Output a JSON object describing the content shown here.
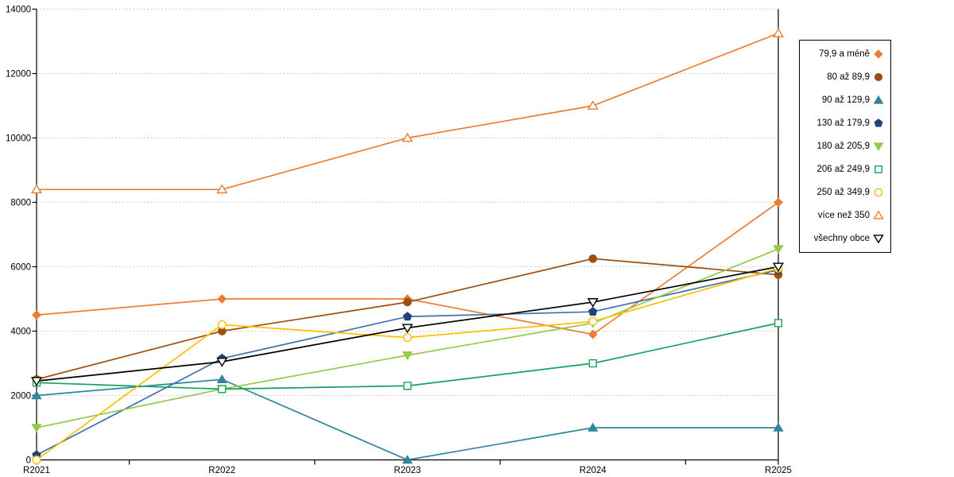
{
  "chart_data": {
    "type": "line",
    "title": "",
    "xlabel": "",
    "ylabel": "",
    "categories": [
      "R2021",
      "R2022",
      "R2023",
      "R2024",
      "R2025"
    ],
    "y_axis": {
      "min": 0,
      "max": 14000,
      "tick_interval": 2000,
      "ticks": [
        0,
        2000,
        4000,
        6000,
        8000,
        10000,
        12000,
        14000
      ],
      "tick_labels": [
        "0",
        "2000",
        "4000",
        "6000",
        "8000",
        "10000",
        "12000",
        "14000"
      ]
    },
    "grid": "horizontal-dotted",
    "grid_color": "#c2c2c2",
    "axis_color": "#000000",
    "legend_position": "right",
    "series": [
      {
        "name": "79,9 a méně",
        "marker": "diamond",
        "marker_fill": "filled",
        "color": "#ED7D31",
        "values": [
          4500,
          5000,
          5000,
          3900,
          8000
        ]
      },
      {
        "name": "80 až 89,9",
        "marker": "circle",
        "marker_fill": "filled",
        "color": "#9E4E10",
        "values": [
          2500,
          4000,
          4900,
          6250,
          5750
        ]
      },
      {
        "name": "90 až 129,9",
        "marker": "triangle-up",
        "marker_fill": "filled",
        "color": "#31859C",
        "values": [
          2000,
          2500,
          0,
          1000,
          1000
        ]
      },
      {
        "name": "130 až 179,9",
        "marker": "pentagon",
        "marker_fill": "filled",
        "color": "#1F4577",
        "line_color": "#3E70AC",
        "values": [
          150,
          3150,
          4450,
          4600,
          5900
        ]
      },
      {
        "name": "180 až 205,9",
        "marker": "triangle-down",
        "marker_fill": "filled",
        "color": "#95C94E",
        "values": [
          1000,
          2200,
          3250,
          4250,
          6550
        ]
      },
      {
        "name": "206 až 249,9",
        "marker": "square",
        "marker_fill": "hollow",
        "color": "#14A45C",
        "values": [
          2400,
          2200,
          2300,
          3000,
          4250
        ]
      },
      {
        "name": "250 až 349,9",
        "marker": "circle",
        "marker_fill": "hollow",
        "color": "#FFC000",
        "values": [
          0,
          4200,
          3800,
          4300,
          5950
        ]
      },
      {
        "name": "více než 350",
        "marker": "triangle-up",
        "marker_fill": "hollow",
        "color": "#ED7D31",
        "values": [
          8400,
          8400,
          10000,
          11000,
          13250
        ]
      },
      {
        "name": "všechny obce",
        "marker": "triangle-down",
        "marker_fill": "hollow",
        "color": "#000000",
        "values": [
          2450,
          3050,
          4100,
          4900,
          6000
        ]
      }
    ]
  }
}
